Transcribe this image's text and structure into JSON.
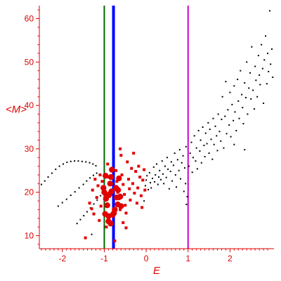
{
  "chart_data": {
    "type": "scatter",
    "title": "",
    "xlabel": "E",
    "ylabel": "<M>",
    "xlim": [
      -2.55,
      3.05
    ],
    "ylim": [
      7,
      63
    ],
    "x_ticks": [
      -2,
      -1,
      0,
      1,
      2
    ],
    "x_tick_labels": [
      "-2",
      "-1",
      "0",
      "1",
      "2"
    ],
    "y_ticks": [
      10,
      20,
      30,
      40,
      50,
      60
    ],
    "y_tick_labels": [
      "10",
      "20",
      "30",
      "40",
      "50",
      "60"
    ],
    "grid": false,
    "legend": "none",
    "colors": {
      "axis": "#e00000",
      "black_points": "#000000",
      "red_points": "#e00000",
      "green_line": "#006600",
      "blue_line": "#0000ff",
      "magenta_line": "#cc00cc"
    },
    "vertical_lines": [
      {
        "x": -1.0,
        "color": "#006600",
        "width": 2
      },
      {
        "x": -0.78,
        "color": "#0000ff",
        "width": 4
      },
      {
        "x": 1.0,
        "color": "#cc00cc",
        "width": 2
      }
    ],
    "series": [
      {
        "marker": "small-black-dot",
        "points": [
          [
            -2.5,
            21.8
          ],
          [
            -2.42,
            22.6
          ],
          [
            -2.34,
            23.5
          ],
          [
            -2.25,
            24.4
          ],
          [
            -2.16,
            25.3
          ],
          [
            -2.07,
            26.0
          ],
          [
            -1.98,
            26.5
          ],
          [
            -1.89,
            26.9
          ],
          [
            -1.8,
            27.1
          ],
          [
            -1.71,
            27.2
          ],
          [
            -1.62,
            27.2
          ],
          [
            -1.53,
            27.1
          ],
          [
            -1.44,
            27.0
          ],
          [
            -1.35,
            26.8
          ],
          [
            -1.27,
            26.5
          ],
          [
            -1.2,
            26.1
          ],
          [
            -2.1,
            16.8
          ],
          [
            -2.0,
            17.6
          ],
          [
            -1.9,
            18.4
          ],
          [
            -1.8,
            19.3
          ],
          [
            -1.7,
            20.1
          ],
          [
            -1.6,
            21.0
          ],
          [
            -1.5,
            21.8
          ],
          [
            -1.42,
            22.6
          ],
          [
            -1.34,
            23.3
          ],
          [
            -1.26,
            23.9
          ],
          [
            -1.18,
            24.4
          ],
          [
            -1.65,
            12.8
          ],
          [
            -1.57,
            13.7
          ],
          [
            -1.49,
            14.6
          ],
          [
            -1.41,
            15.5
          ],
          [
            -1.33,
            16.4
          ],
          [
            -1.25,
            17.3
          ],
          [
            -1.17,
            18.2
          ],
          [
            -1.09,
            19.2
          ],
          [
            -1.3,
            10.3
          ],
          [
            -0.05,
            18.0
          ],
          [
            -0.02,
            21.5
          ],
          [
            0.0,
            22.8
          ],
          [
            0.02,
            23.8
          ],
          [
            0.05,
            20.6
          ],
          [
            0.08,
            24.5
          ],
          [
            0.1,
            22.2
          ],
          [
            0.12,
            21.0
          ],
          [
            0.15,
            23.2
          ],
          [
            0.18,
            25.8
          ],
          [
            0.2,
            22.4
          ],
          [
            0.22,
            24.0
          ],
          [
            0.25,
            26.5
          ],
          [
            0.28,
            21.8
          ],
          [
            0.3,
            23.5
          ],
          [
            0.32,
            25.0
          ],
          [
            0.35,
            22.9
          ],
          [
            0.38,
            27.2
          ],
          [
            0.4,
            24.2
          ],
          [
            0.42,
            22.0
          ],
          [
            0.45,
            26.0
          ],
          [
            0.48,
            23.4
          ],
          [
            0.5,
            28.0
          ],
          [
            0.52,
            25.3
          ],
          [
            0.55,
            20.8
          ],
          [
            0.58,
            24.8
          ],
          [
            0.6,
            27.0
          ],
          [
            0.62,
            22.6
          ],
          [
            0.65,
            26.2
          ],
          [
            0.68,
            29.0
          ],
          [
            0.7,
            24.0
          ],
          [
            0.72,
            21.2
          ],
          [
            0.75,
            27.5
          ],
          [
            0.78,
            25.0
          ],
          [
            0.8,
            29.8
          ],
          [
            0.82,
            23.1
          ],
          [
            0.85,
            26.8
          ],
          [
            0.88,
            28.4
          ],
          [
            0.9,
            20.2
          ],
          [
            0.92,
            25.6
          ],
          [
            0.95,
            30.5
          ],
          [
            0.98,
            19.0
          ],
          [
            0.96,
            17.2
          ],
          [
            0.94,
            22.0
          ],
          [
            1.02,
            26.0
          ],
          [
            1.05,
            29.0
          ],
          [
            1.08,
            31.5
          ],
          [
            1.1,
            24.6
          ],
          [
            1.12,
            28.0
          ],
          [
            1.15,
            33.0
          ],
          [
            1.18,
            27.2
          ],
          [
            1.2,
            30.2
          ],
          [
            1.22,
            25.4
          ],
          [
            1.25,
            34.2
          ],
          [
            1.28,
            29.5
          ],
          [
            1.3,
            32.0
          ],
          [
            1.32,
            26.8
          ],
          [
            1.35,
            35.0
          ],
          [
            1.38,
            30.8
          ],
          [
            1.4,
            28.2
          ],
          [
            1.42,
            33.6
          ],
          [
            1.45,
            31.2
          ],
          [
            1.48,
            36.0
          ],
          [
            1.5,
            29.0
          ],
          [
            1.52,
            34.5
          ],
          [
            1.55,
            32.2
          ],
          [
            1.58,
            27.6
          ],
          [
            1.6,
            37.0
          ],
          [
            1.62,
            31.0
          ],
          [
            1.65,
            35.2
          ],
          [
            1.68,
            33.0
          ],
          [
            1.7,
            29.6
          ],
          [
            1.72,
            38.0
          ],
          [
            1.75,
            34.0
          ],
          [
            1.78,
            31.8
          ],
          [
            1.8,
            36.8
          ],
          [
            1.82,
            42.0
          ],
          [
            1.85,
            30.2
          ],
          [
            1.88,
            37.5
          ],
          [
            1.9,
            45.5
          ],
          [
            1.92,
            33.5
          ],
          [
            1.95,
            39.0
          ],
          [
            1.98,
            35.5
          ],
          [
            2.0,
            43.0
          ],
          [
            2.02,
            32.8
          ],
          [
            2.05,
            40.2
          ],
          [
            2.08,
            36.5
          ],
          [
            2.1,
            44.5
          ],
          [
            2.12,
            38.5
          ],
          [
            2.15,
            34.2
          ],
          [
            2.18,
            46.0
          ],
          [
            2.2,
            41.0
          ],
          [
            2.22,
            37.0
          ],
          [
            2.25,
            48.0
          ],
          [
            2.28,
            42.5
          ],
          [
            2.3,
            39.5
          ],
          [
            2.32,
            35.8
          ],
          [
            2.35,
            45.2
          ],
          [
            2.38,
            41.8
          ],
          [
            2.4,
            50.0
          ],
          [
            2.42,
            38.0
          ],
          [
            2.45,
            44.0
          ],
          [
            2.48,
            47.5
          ],
          [
            2.5,
            41.5
          ],
          [
            2.52,
            53.5
          ],
          [
            2.55,
            43.5
          ],
          [
            2.58,
            39.2
          ],
          [
            2.6,
            49.0
          ],
          [
            2.62,
            45.8
          ],
          [
            2.65,
            42.0
          ],
          [
            2.68,
            51.5
          ],
          [
            2.7,
            47.0
          ],
          [
            2.72,
            44.8
          ],
          [
            2.75,
            54.0
          ],
          [
            2.78,
            48.5
          ],
          [
            2.8,
            40.5
          ],
          [
            2.82,
            50.5
          ],
          [
            2.85,
            56.0
          ],
          [
            2.88,
            45.0
          ],
          [
            2.9,
            52.0
          ],
          [
            2.92,
            47.8
          ],
          [
            2.95,
            61.8
          ],
          [
            2.97,
            49.5
          ],
          [
            3.0,
            53.0
          ],
          [
            3.02,
            46.5
          ],
          [
            2.35,
            29.8
          ],
          [
            2.1,
            31.0
          ]
        ]
      },
      {
        "marker": "red-square",
        "points": [
          [
            -1.35,
            17.5
          ],
          [
            -1.3,
            16.2
          ],
          [
            -1.25,
            15.0
          ],
          [
            -1.28,
            20.5
          ],
          [
            -1.22,
            23.0
          ],
          [
            -1.18,
            18.8
          ],
          [
            -1.15,
            21.5
          ],
          [
            -1.1,
            24.0
          ],
          [
            -1.12,
            13.5
          ],
          [
            -1.05,
            22.5
          ],
          [
            -1.08,
            16.8
          ],
          [
            -0.92,
            26.5
          ],
          [
            -0.95,
            12.0
          ],
          [
            -0.9,
            23.5
          ],
          [
            -0.88,
            19.0
          ],
          [
            -0.85,
            14.5
          ],
          [
            -0.72,
            25.0
          ],
          [
            -0.7,
            22.5
          ],
          [
            -0.68,
            20.0
          ],
          [
            -0.65,
            18.5
          ],
          [
            -0.62,
            16.0
          ],
          [
            -0.6,
            28.5
          ],
          [
            -0.58,
            24.0
          ],
          [
            -0.55,
            21.8
          ],
          [
            -0.52,
            19.5
          ],
          [
            -0.5,
            17.0
          ],
          [
            -0.48,
            15.2
          ],
          [
            -0.45,
            27.0
          ],
          [
            -0.42,
            23.0
          ],
          [
            -0.4,
            20.8
          ],
          [
            -0.38,
            18.2
          ],
          [
            -0.35,
            25.5
          ],
          [
            -0.32,
            22.0
          ],
          [
            -0.3,
            29.0
          ],
          [
            -0.28,
            19.8
          ],
          [
            -0.25,
            24.8
          ],
          [
            -0.22,
            17.5
          ],
          [
            -0.2,
            21.0
          ],
          [
            -0.18,
            26.0
          ],
          [
            -0.15,
            23.5
          ],
          [
            -0.12,
            19.2
          ],
          [
            -0.1,
            16.5
          ],
          [
            -0.08,
            22.8
          ],
          [
            -0.05,
            25.2
          ],
          [
            -0.03,
            20.5
          ],
          [
            -0.55,
            13.0
          ],
          [
            -0.48,
            11.8
          ],
          [
            -0.62,
            30.0
          ],
          [
            -1.45,
            9.5
          ],
          [
            -0.75,
            8.8
          ]
        ]
      },
      {
        "marker": "red-large-dot",
        "points": [
          [
            -1.02,
            21.0
          ],
          [
            -1.0,
            20.0
          ],
          [
            -0.98,
            15.0
          ],
          [
            -0.96,
            18.5
          ],
          [
            -0.93,
            17.0
          ],
          [
            -0.9,
            14.5
          ],
          [
            -0.88,
            19.5
          ],
          [
            -0.86,
            22.0
          ],
          [
            -0.84,
            23.5
          ],
          [
            -0.82,
            25.2
          ],
          [
            -0.8,
            14.8
          ],
          [
            -0.77,
            15.2
          ],
          [
            -0.75,
            16.0
          ],
          [
            -0.72,
            21.0
          ],
          [
            -0.7,
            18.8
          ],
          [
            -0.68,
            17.2
          ],
          [
            -0.67,
            20.5
          ],
          [
            -0.65,
            23.2
          ],
          [
            -0.62,
            19.0
          ],
          [
            -0.6,
            16.8
          ],
          [
            -0.9,
            13.3
          ],
          [
            -0.85,
            12.8
          ],
          [
            -0.97,
            23.8
          ],
          [
            -0.95,
            19.2
          ],
          [
            -0.83,
            20.2
          ]
        ]
      }
    ]
  }
}
